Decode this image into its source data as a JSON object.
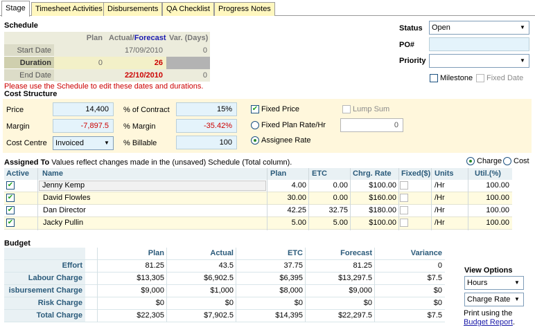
{
  "tabs": [
    "Stage",
    "Timesheet Activities",
    "Disbursements",
    "QA Checklist",
    "Progress Notes"
  ],
  "schedule": {
    "heading": "Schedule",
    "headers": {
      "plan": "Plan",
      "actual": "Actual/",
      "forecast": "Forecast",
      "variance": "Var. (Days)"
    },
    "rows": [
      {
        "label": "Start Date",
        "plan": "",
        "actual": "17/09/2010",
        "variance": "0"
      },
      {
        "label": "Duration",
        "plan": "0",
        "actual": "26",
        "variance": ""
      },
      {
        "label": "End Date",
        "plan": "",
        "actual": "22/10/2010",
        "variance": "0"
      }
    ],
    "note": "Please use the Schedule to edit these dates and durations."
  },
  "status_panel": {
    "status_label": "Status",
    "status_value": "Open",
    "po_label": "PO#",
    "po_value": "",
    "priority_label": "Priority",
    "priority_value": "",
    "milestone_label": "Milestone",
    "fixed_date_label": "Fixed Date"
  },
  "cost": {
    "heading": "Cost Structure",
    "price_label": "Price",
    "price_value": "14,400",
    "margin_label": "Margin",
    "margin_value": "-7,897.5",
    "cost_centre_label": "Cost Centre",
    "cost_centre_value": "Invoiced",
    "pct_contract_label": "% of Contract",
    "pct_contract_value": "15%",
    "pct_margin_label": "% Margin",
    "pct_margin_value": "-35.42%",
    "pct_billable_label": "% Billable",
    "pct_billable_value": "100",
    "fixed_price_label": "Fixed Price",
    "lump_sum_label": "Lump Sum",
    "fixed_plan_rate_label": "Fixed Plan Rate/Hr",
    "fixed_plan_rate_value": "0",
    "assignee_rate_label": "Assignee Rate"
  },
  "assigned": {
    "heading": "Assigned To",
    "subtitle": "Values reflect changes made in the (unsaved) Schedule (Total column).",
    "charge_label": "Charge",
    "cost_label": "Cost",
    "columns": [
      "Active",
      "Name",
      "Plan",
      "ETC",
      "Chrg. Rate",
      "Fixed($)",
      "Units",
      "Util.(%)"
    ],
    "rows": [
      {
        "name": "Jenny Kemp",
        "plan": "4.00",
        "etc": "0.00",
        "rate": "$100.00",
        "units": "/Hr",
        "util": "100.00"
      },
      {
        "name": "David Flowles",
        "plan": "30.00",
        "etc": "0.00",
        "rate": "$160.00",
        "units": "/Hr",
        "util": "100.00"
      },
      {
        "name": "Dan Director",
        "plan": "42.25",
        "etc": "32.75",
        "rate": "$180.00",
        "units": "/Hr",
        "util": "100.00"
      },
      {
        "name": "Jacky Pullin",
        "plan": "5.00",
        "etc": "5.00",
        "rate": "$100.00",
        "units": "/Hr",
        "util": "100.00"
      }
    ]
  },
  "budget": {
    "heading": "Budget",
    "columns": [
      "Plan",
      "Actual",
      "ETC",
      "Forecast",
      "Variance"
    ],
    "rows": [
      {
        "label": "Effort",
        "values": [
          "81.25",
          "43.5",
          "37.75",
          "81.25",
          "0"
        ]
      },
      {
        "label": "Labour Charge",
        "values": [
          "$13,305",
          "$6,902.5",
          "$6,395",
          "$13,297.5",
          "$7.5"
        ]
      },
      {
        "label": "isbursement Charge",
        "values": [
          "$9,000",
          "$1,000",
          "$8,000",
          "$9,000",
          "$0"
        ]
      },
      {
        "label": "Risk Charge",
        "values": [
          "$0",
          "$0",
          "$0",
          "$0",
          "$0"
        ]
      },
      {
        "label": "Total Charge",
        "values": [
          "$22,305",
          "$7,902.5",
          "$14,395",
          "$22,297.5",
          "$7.5"
        ]
      }
    ]
  },
  "view_options": {
    "heading": "View Options",
    "mode_value": "Hours",
    "rate_value": "Charge Rate",
    "print_text": "Print using the",
    "report_link": "Budget Report",
    "period": "."
  }
}
